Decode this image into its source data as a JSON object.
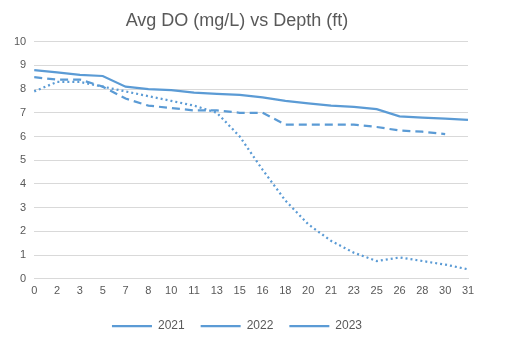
{
  "chart_data": {
    "type": "line",
    "title": "Avg DO (mg/L) vs Depth (ft)",
    "categories": [
      "0",
      "2",
      "3",
      "5",
      "7",
      "8",
      "10",
      "11",
      "13",
      "15",
      "16",
      "18",
      "20",
      "21",
      "23",
      "25",
      "26",
      "28",
      "30",
      "31"
    ],
    "series": [
      {
        "name": "2021",
        "color": "#5b9bd5",
        "line_style": "dotted",
        "values": [
          7.9,
          8.3,
          8.3,
          8.1,
          7.9,
          7.7,
          7.5,
          7.3,
          7.0,
          6.0,
          4.6,
          3.3,
          2.3,
          1.6,
          1.1,
          0.75,
          0.9,
          0.75,
          0.6,
          0.4
        ]
      },
      {
        "name": "2022",
        "color": "#5b9bd5",
        "line_style": "dashed",
        "values": [
          8.5,
          8.4,
          8.4,
          8.1,
          7.6,
          7.3,
          7.2,
          7.1,
          7.1,
          7.0,
          7.0,
          6.5,
          6.5,
          6.5,
          6.5,
          6.4,
          6.25,
          6.2,
          6.1,
          null
        ]
      },
      {
        "name": "2023",
        "color": "#5b9bd5",
        "line_style": "solid",
        "values": [
          8.8,
          8.7,
          8.6,
          8.55,
          8.1,
          8.0,
          7.95,
          7.85,
          7.8,
          7.75,
          7.65,
          7.5,
          7.4,
          7.3,
          7.25,
          7.15,
          6.85,
          6.8,
          6.75,
          6.7
        ]
      }
    ],
    "ylim": [
      0,
      10
    ],
    "yticks": [
      0,
      1,
      2,
      3,
      4,
      5,
      6,
      7,
      8,
      9,
      10
    ],
    "grid": true,
    "legend": "bottom",
    "marker": "none"
  }
}
